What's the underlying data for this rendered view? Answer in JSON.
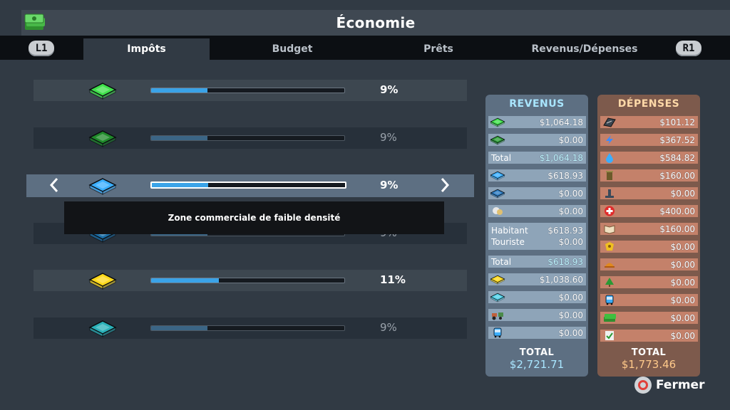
{
  "window": {
    "title": "Économie"
  },
  "tabs": [
    {
      "label": "Impôts",
      "active": true
    },
    {
      "label": "Budget",
      "active": false
    },
    {
      "label": "Prêts",
      "active": false
    },
    {
      "label": "Revenus/Dépenses",
      "active": false
    }
  ],
  "shoulder_buttons": {
    "left": "L1",
    "right": "R1"
  },
  "colors": {
    "slider_fill": "#3aa3e8",
    "revenus_panel": "#5d6f82",
    "depenses_panel": "#7d5a4c"
  },
  "tax_rows": [
    {
      "icon": "residential-low-icon",
      "rate_label": "9%",
      "fill_fraction": 0.29,
      "dim": false,
      "icon_color": "#3fe04a"
    },
    {
      "icon": "residential-high-icon",
      "rate_label": "9%",
      "fill_fraction": 0.29,
      "dim": true,
      "icon_color": "#1f8a2a"
    },
    {
      "icon": "commercial-low-icon",
      "rate_label": "9%",
      "fill_fraction": 0.29,
      "dim": false,
      "icon_color": "#3aaeff",
      "selected": true
    },
    {
      "icon": "commercial-high-icon",
      "rate_label": "9%",
      "fill_fraction": 0.29,
      "dim": true,
      "icon_color": "#1b6fa8"
    },
    {
      "icon": "industrial-icon",
      "rate_label": "11%",
      "fill_fraction": 0.35,
      "dim": false,
      "icon_color": "#ffd91a"
    },
    {
      "icon": "office-icon",
      "rate_label": "9%",
      "fill_fraction": 0.29,
      "dim": true,
      "icon_color": "#2ab0b8"
    }
  ],
  "tooltip": "Zone commerciale de faible densité",
  "revenus": {
    "title": "REVENUS",
    "rows": [
      {
        "icon": "residential-low-icon",
        "value": "$1,064.18"
      },
      {
        "icon": "residential-high-icon",
        "value": "$0.00"
      },
      {
        "label": "Total",
        "value": "$1,064.18",
        "total": true
      },
      {
        "icon": "commercial-low-icon",
        "value": "$618.93"
      },
      {
        "icon": "commercial-high-icon",
        "value": "$0.00"
      },
      {
        "icon": "leisure-icon",
        "value": "$0.00"
      },
      {
        "double": true,
        "lines": [
          {
            "label": "Habitant",
            "value": "$618.93"
          },
          {
            "label": "Touriste",
            "value": "$0.00"
          }
        ]
      },
      {
        "label": "Total",
        "value": "$618.93",
        "total": true
      },
      {
        "icon": "industrial-icon",
        "value": "$1,038.60"
      },
      {
        "icon": "office-icon",
        "value": "$0.00"
      },
      {
        "icon": "farming-icon",
        "value": "$0.00"
      },
      {
        "icon": "public-transport-icon",
        "value": "$0.00"
      }
    ],
    "total_label": "TOTAL",
    "total_value": "$2,721.71"
  },
  "depenses": {
    "title": "DÉPENSES",
    "rows": [
      {
        "icon": "roads-icon",
        "value": "$101.12"
      },
      {
        "icon": "electricity-icon",
        "value": "$367.52"
      },
      {
        "icon": "water-icon",
        "value": "$584.82"
      },
      {
        "icon": "garbage-icon",
        "value": "$160.00"
      },
      {
        "icon": "park-icon",
        "value": "$0.00"
      },
      {
        "icon": "healthcare-icon",
        "value": "$400.00"
      },
      {
        "icon": "education-icon",
        "value": "$160.00"
      },
      {
        "icon": "police-icon",
        "value": "$0.00"
      },
      {
        "icon": "fire-icon",
        "value": "$0.00"
      },
      {
        "icon": "tree-icon",
        "value": "$0.00"
      },
      {
        "icon": "transport-icon",
        "value": "$0.00"
      },
      {
        "icon": "money-icon",
        "value": "$0.00"
      },
      {
        "icon": "policies-icon",
        "value": "$0.00"
      }
    ],
    "total_label": "TOTAL",
    "total_value": "$1,773.46"
  },
  "close": {
    "label": "Fermer"
  }
}
